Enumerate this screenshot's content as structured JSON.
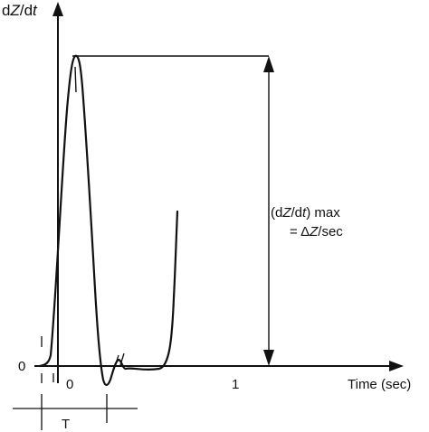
{
  "figure": {
    "y_axis_label": {
      "pre": "d",
      "var": "Z",
      "mid": "/d",
      "var2": "t"
    },
    "x_axis_label": "Time (sec)",
    "origin_label": "0",
    "tick_labels": [
      "0",
      "1"
    ],
    "interval_label": "T",
    "annotation": {
      "line1_pre": "(d",
      "line1_var": "Z",
      "line1_mid": "/d",
      "line1_var2": "t",
      "line1_post": ") max",
      "line2_pre": "= Δ",
      "line2_var": "Z",
      "line2_post": "/sec"
    }
  },
  "chart_data": {
    "type": "line",
    "title": "",
    "xlabel": "Time (sec)",
    "ylabel": "dZ/dt",
    "x_ticks": [
      "0",
      "1"
    ],
    "y_ticks": [
      "0"
    ],
    "grid": false,
    "annotations": [
      "(dZ/dt) max = ΔZ/sec",
      "T"
    ]
  }
}
